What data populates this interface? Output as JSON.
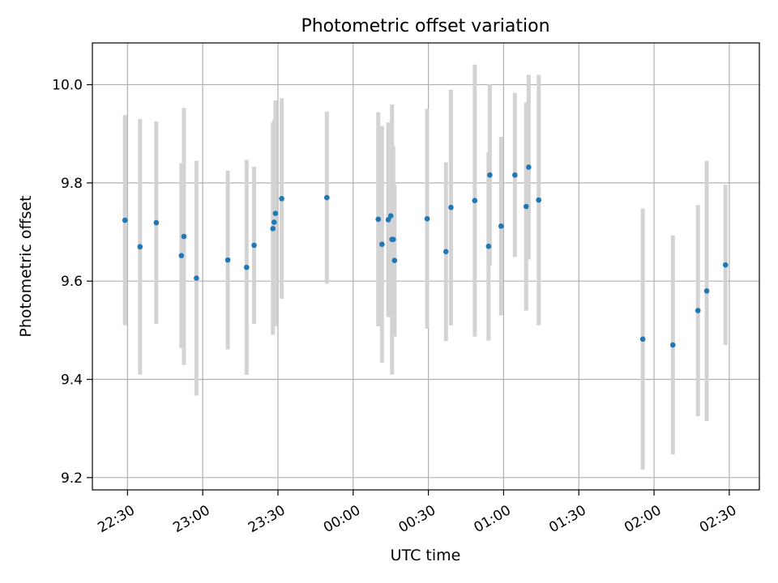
{
  "chart_data": {
    "type": "scatter",
    "title": "Photometric offset variation",
    "xlabel": "UTC time",
    "ylabel": "Photometric offset",
    "xlim": [
      "22:16",
      "02:42"
    ],
    "ylim": [
      9.175,
      10.085
    ],
    "x_ticks": [
      "22:30",
      "23:00",
      "23:30",
      "00:00",
      "00:30",
      "01:00",
      "01:30",
      "02:00",
      "02:30"
    ],
    "y_ticks": [
      "9.2",
      "9.4",
      "9.6",
      "9.8",
      "10.0"
    ],
    "grid": true,
    "point_color": "#1f77b4",
    "errorbar_color": "#d3d3d3",
    "points": [
      {
        "t": "22:29:00",
        "y": 9.724,
        "err": 0.214
      },
      {
        "t": "22:35:00",
        "y": 9.67,
        "err": 0.26
      },
      {
        "t": "22:41:30",
        "y": 9.719,
        "err": 0.206
      },
      {
        "t": "22:51:30",
        "y": 9.652,
        "err": 0.188
      },
      {
        "t": "22:52:30",
        "y": 9.691,
        "err": 0.262
      },
      {
        "t": "22:57:30",
        "y": 9.606,
        "err": 0.239
      },
      {
        "t": "23:10:00",
        "y": 9.643,
        "err": 0.182
      },
      {
        "t": "23:17:30",
        "y": 9.628,
        "err": 0.219
      },
      {
        "t": "23:20:30",
        "y": 9.673,
        "err": 0.16
      },
      {
        "t": "23:28:00",
        "y": 9.707,
        "err": 0.216
      },
      {
        "t": "23:28:30",
        "y": 9.72,
        "err": 0.208
      },
      {
        "t": "23:29:00",
        "y": 9.738,
        "err": 0.23
      },
      {
        "t": "23:31:30",
        "y": 9.768,
        "err": 0.204
      },
      {
        "t": "23:49:30",
        "y": 9.77,
        "err": 0.175
      },
      {
        "t": "00:10:00",
        "y": 9.726,
        "err": 0.218
      },
      {
        "t": "00:11:30",
        "y": 9.675,
        "err": 0.241
      },
      {
        "t": "00:14:00",
        "y": 9.725,
        "err": 0.198
      },
      {
        "t": "00:15:00",
        "y": 9.733,
        "err": 0.189
      },
      {
        "t": "00:15:30",
        "y": 9.685,
        "err": 0.275
      },
      {
        "t": "00:16:00",
        "y": 9.685,
        "err": 0.19
      },
      {
        "t": "00:16:30",
        "y": 9.642,
        "err": 0.155
      },
      {
        "t": "00:29:30",
        "y": 9.727,
        "err": 0.224
      },
      {
        "t": "00:37:00",
        "y": 9.66,
        "err": 0.182
      },
      {
        "t": "00:39:00",
        "y": 9.75,
        "err": 0.24
      },
      {
        "t": "00:48:30",
        "y": 9.764,
        "err": 0.277
      },
      {
        "t": "00:54:00",
        "y": 9.671,
        "err": 0.192
      },
      {
        "t": "00:54:30",
        "y": 9.816,
        "err": 0.185
      },
      {
        "t": "00:59:00",
        "y": 9.712,
        "err": 0.182
      },
      {
        "t": "01:04:30",
        "y": 9.816,
        "err": 0.167
      },
      {
        "t": "01:09:00",
        "y": 9.752,
        "err": 0.212
      },
      {
        "t": "01:10:00",
        "y": 9.832,
        "err": 0.188
      },
      {
        "t": "01:14:00",
        "y": 9.765,
        "err": 0.255
      },
      {
        "t": "01:55:30",
        "y": 9.482,
        "err": 0.266
      },
      {
        "t": "02:07:30",
        "y": 9.47,
        "err": 0.223
      },
      {
        "t": "02:17:30",
        "y": 9.54,
        "err": 0.215
      },
      {
        "t": "02:21:00",
        "y": 9.58,
        "err": 0.265
      },
      {
        "t": "02:28:30",
        "y": 9.633,
        "err": 0.163
      }
    ]
  }
}
